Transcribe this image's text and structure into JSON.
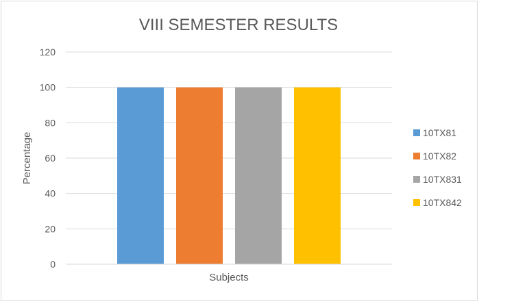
{
  "chart_data": {
    "type": "bar",
    "title": "VIII SEMESTER RESULTS",
    "xlabel": "Subjects",
    "ylabel": "Percentage",
    "categories": [
      "Subjects"
    ],
    "ylim": [
      0,
      120
    ],
    "yticks": [
      0,
      20,
      40,
      60,
      80,
      100,
      120
    ],
    "grid": true,
    "legend_position": "right",
    "series": [
      {
        "name": "10TX81",
        "values": [
          100
        ],
        "color": "#5b9bd5"
      },
      {
        "name": "10TX82",
        "values": [
          100
        ],
        "color": "#ed7d31"
      },
      {
        "name": "10TX831",
        "values": [
          100
        ],
        "color": "#a5a5a5"
      },
      {
        "name": "10TX842",
        "values": [
          100
        ],
        "color": "#ffc000"
      }
    ]
  }
}
